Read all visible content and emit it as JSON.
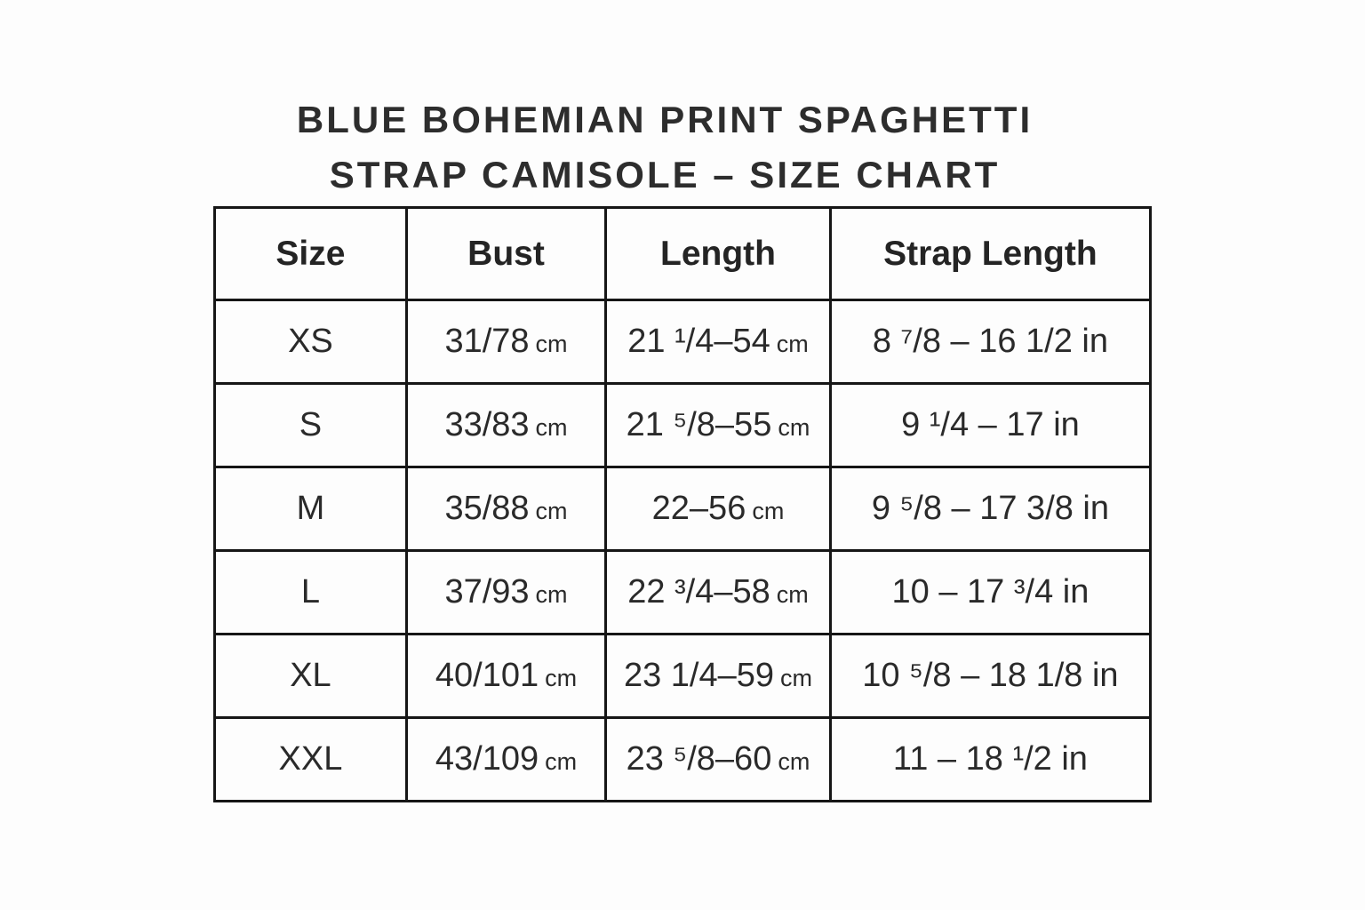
{
  "title": {
    "line1": "BLUE BOHEMIAN PRINT SPAGHETTI",
    "line2": "STRAP CAMISOLE – SIZE CHART"
  },
  "table": {
    "headers": [
      "Size",
      "Bust",
      "Length",
      "Strap Length"
    ],
    "rows": [
      {
        "size": "XS",
        "bust": "31/78",
        "bust_unit": "cm",
        "length": "21 ¹/4–54",
        "length_unit": "cm",
        "strap": "8 ⁷/8 – 16 1/2 in"
      },
      {
        "size": "S",
        "bust": "33/83",
        "bust_unit": "cm",
        "length": "21 ⁵/8–55",
        "length_unit": "cm",
        "strap": "9 ¹/4 – 17 in"
      },
      {
        "size": "M",
        "bust": "35/88",
        "bust_unit": "cm",
        "length": "22–56",
        "length_unit": "cm",
        "strap": "9 ⁵/8 – 17 3/8 in"
      },
      {
        "size": "L",
        "bust": "37/93",
        "bust_unit": "cm",
        "length": "22 ³/4–58",
        "length_unit": "cm",
        "strap": "10 – 17 ³/4 in"
      },
      {
        "size": "XL",
        "bust": "40/101",
        "bust_unit": "cm",
        "length": "23 1/4–59",
        "length_unit": "cm",
        "strap": "10 ⁵/8 – 18 1/8 in"
      },
      {
        "size": "XXL",
        "bust": "43/109",
        "bust_unit": "cm",
        "length": "23 ⁵/8–60",
        "length_unit": "cm",
        "strap": "11 – 18 ¹/2 in"
      }
    ]
  },
  "chart_data": {
    "type": "table",
    "title": "BLUE BOHEMIAN PRINT SPAGHETTI STRAP CAMISOLE – SIZE CHART",
    "columns": [
      "Size",
      "Bust",
      "Length",
      "Strap Length"
    ],
    "rows": [
      [
        "XS",
        "31/78 cm",
        "21 ¹/4–54 cm",
        "8 ⁷/8 – 16 1/2 in"
      ],
      [
        "S",
        "33/83 cm",
        "21 ⁵/8–55 cm",
        "9 ¹/4 – 17 in"
      ],
      [
        "M",
        "35/88 cm",
        "22–56 cm",
        "9 ⁵/8 – 17 3/8 in"
      ],
      [
        "L",
        "37/93 cm",
        "22 ³/4–58 cm",
        "10 – 17 ³/4 in"
      ],
      [
        "XL",
        "40/101 cm",
        "23 1/4–59 cm",
        "10 ⁵/8 – 18 1/8 in"
      ],
      [
        "XXL",
        "43/109 cm",
        "23 ⁵/8–60 cm",
        "11 – 18 ¹/2 in"
      ]
    ]
  },
  "colors": {
    "background": "#fdfdfd",
    "border": "#161616",
    "text": "#2a2a2a",
    "title_text": "#2d2d2d"
  }
}
